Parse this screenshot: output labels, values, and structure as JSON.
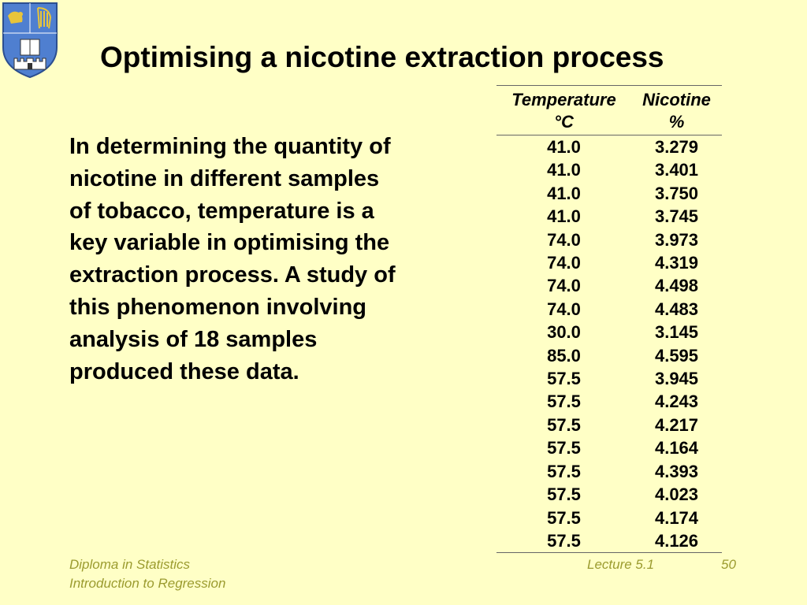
{
  "title": "Optimising a nicotine extraction process",
  "body_text": "In determining the quantity of\nnicotine in different samples\nof tobacco, temperature is a\nkey variable in optimising the\nextraction process.  A study of\nthis phenomenon involving\nanalysis of 18 samples\nproduced these data.",
  "table": {
    "headers": [
      {
        "line1": "Temperature",
        "line2": "°C"
      },
      {
        "line1": "Nicotine",
        "line2": "%"
      }
    ],
    "rows": [
      [
        "41.0",
        "3.279"
      ],
      [
        "41.0",
        "3.401"
      ],
      [
        "41.0",
        "3.750"
      ],
      [
        "41.0",
        "3.745"
      ],
      [
        "74.0",
        "3.973"
      ],
      [
        "74.0",
        "4.319"
      ],
      [
        "74.0",
        "4.498"
      ],
      [
        "74.0",
        "4.483"
      ],
      [
        "30.0",
        "3.145"
      ],
      [
        "85.0",
        "4.595"
      ],
      [
        "57.5",
        "3.945"
      ],
      [
        "57.5",
        "4.243"
      ],
      [
        "57.5",
        "4.217"
      ],
      [
        "57.5",
        "4.164"
      ],
      [
        "57.5",
        "4.393"
      ],
      [
        "57.5",
        "4.023"
      ],
      [
        "57.5",
        "4.174"
      ],
      [
        "57.5",
        "4.126"
      ]
    ]
  },
  "footer": {
    "course_line1": "Diploma in Statistics",
    "course_line2": "Introduction to Regression",
    "lecture": "Lecture 5.1",
    "page": "50"
  },
  "colors": {
    "background": "#ffffc6",
    "footer_text": "#9b9b2f",
    "crest_blue": "#4f7fd0",
    "crest_gold": "#e8c43a"
  },
  "logo": {
    "icon": "university-crest-icon"
  }
}
